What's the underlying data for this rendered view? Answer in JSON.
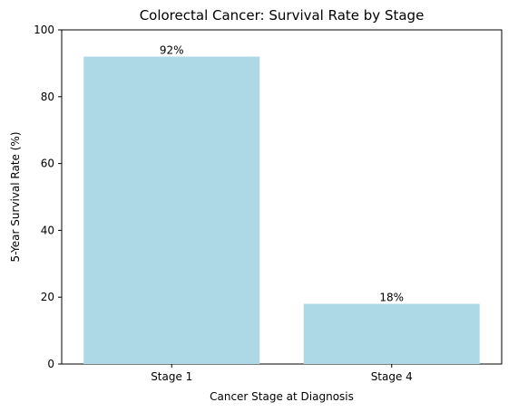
{
  "chart_data": {
    "type": "bar",
    "title": "Colorectal Cancer: Survival Rate by Stage",
    "xlabel": "Cancer Stage at Diagnosis",
    "ylabel": "5-Year Survival Rate (%)",
    "categories": [
      "Stage 1",
      "Stage 4"
    ],
    "values": [
      92,
      18
    ],
    "data_labels": [
      "92%",
      "18%"
    ],
    "ylim": [
      0,
      100
    ],
    "yticks": [
      0,
      20,
      40,
      60,
      80,
      100
    ],
    "grid": false,
    "legend": "none",
    "bar_color": "#add8e6"
  }
}
